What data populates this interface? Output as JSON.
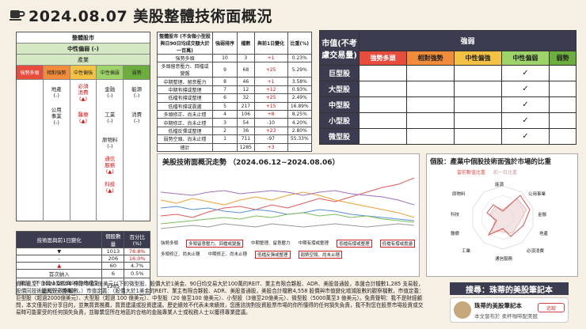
{
  "header": {
    "title": "2024.08.07 美股整體技術面概況"
  },
  "sector_panel": {
    "title": "整體股市",
    "status": "中性偏弱 (-)",
    "industry_label": "產業",
    "categories": [
      "強勢多頭",
      "相對強勢",
      "中性偏強",
      "中性偏弱",
      "弱勢"
    ],
    "col2": [
      "地產",
      "(-)"
    ],
    "col2b": [
      "公用",
      "事業",
      "(-)"
    ],
    "col3": [
      "必須",
      "消費",
      "(▲)"
    ],
    "col3b": [
      "醫療",
      "(▲)"
    ],
    "col4a": [
      "金融",
      "(-)"
    ],
    "col4b": [
      "工業",
      "(-)"
    ],
    "col4c": [
      "原物料",
      "(-)"
    ],
    "col4d": [
      "通信",
      "服務",
      "(▲)"
    ],
    "col4e": [
      "科技",
      "(▲)"
    ],
    "col5a": [
      "能源",
      "(-)"
    ],
    "col5b": [
      "消費",
      "(-)"
    ]
  },
  "change_table": {
    "headers": [
      "技術面與前1日變化",
      "個股數量",
      "百分比(%)"
    ],
    "rows": [
      [
        "▼",
        "1013",
        "78.8%"
      ],
      [
        "-",
        "206",
        "16.0%"
      ],
      [
        "▲",
        "60",
        "4.7%"
      ],
      [
        "首次納入",
        "6",
        "0.5%"
      ],
      [
        "統計（不含微小型股與90日均成交量大於一百萬）",
        "1285",
        ""
      ]
    ]
  },
  "state_table": {
    "headers": [
      "整體股市 (不含微小型股與日90日均成交額大於一百萬)",
      "強弱排序",
      "檔數",
      "與前1日變化",
      "比重(%)"
    ],
    "rows": [
      [
        "強勢多頭",
        "10",
        "3",
        "+1",
        "0.23%"
      ],
      [
        "多頭留意壓力、回檔或變盤",
        "9",
        "68",
        "+25",
        "5.29%"
      ],
      [
        "中期整理、留意壓力",
        "8",
        "46",
        "+1",
        "3.58%"
      ],
      [
        "中期有撐或整理",
        "7",
        "12",
        "+12",
        "0.93%"
      ],
      [
        "低檔有撐或整理",
        "6",
        "32",
        "+25",
        "2.49%"
      ],
      [
        "低檔有撐或震盪",
        "5",
        "217",
        "+15",
        "16.89%"
      ],
      [
        "多頭修正、尚未止穩",
        "4",
        "106",
        "+8",
        "8.25%"
      ],
      [
        "中期修正、尚未止穩",
        "3",
        "54",
        "-10",
        "4.20%"
      ],
      [
        "低檔反彈或整理",
        "2",
        "36",
        "+23",
        "2.80%"
      ],
      [
        "弱勢空頭、尚未止穩",
        "1",
        "711",
        "-97",
        "55.33%"
      ],
      [
        "總計",
        "",
        "1285",
        "+3",
        ""
      ]
    ]
  },
  "cap_table": {
    "corner": "市值(不考慮交易量)",
    "strength_label": "強弱",
    "columns": [
      "強勢多頭",
      "相對強勢",
      "中性偏強",
      "中性偏弱",
      "弱勢"
    ],
    "rows": [
      {
        "label": "巨型股",
        "mark": "✓"
      },
      {
        "label": "大型股",
        "mark": "✓"
      },
      {
        "label": "中型股",
        "mark": "✓"
      },
      {
        "label": "小型股",
        "mark": "✓"
      },
      {
        "label": "微型股",
        "mark": "✓"
      }
    ]
  },
  "trend_chart": {
    "title": "美股技術面概況走勢 （2024.06.12~2024.08.06）",
    "legend": [
      "強勢多頭",
      "多頭留意壓力、回檔或變盤",
      "中期整理、留意壓力",
      "中期有撐或整理",
      "低檔有撐或整理",
      "低檔有撐或震盪",
      "多頭修正、尚未止穩",
      "中期修正、尚未止穩",
      "低檔反彈或整理",
      "弱勢空頭、尚未止穩"
    ]
  },
  "radar_chart": {
    "title": "個股：產業中個股技術面強於市場的比重",
    "legend": [
      "當前數值比重",
      "前一日比重"
    ],
    "axes": [
      "能源",
      "公用事業",
      "金融",
      "地產",
      "必須消費",
      "通信服務",
      "工業",
      "醫療",
      "科技",
      "原物料"
    ],
    "colors": {
      "current": "#d9534f",
      "previous": "#e8c8c8"
    }
  },
  "footer": {
    "note": "資料截至：2024.08.06 排除市值3億美元以下的微型股、股價大於1美金、90日均交易大於100萬的REIT、業主有限合夥股、ADR、美股普通股，本盤合計檔數1,285 支易股，股價同技術面概況觀察檔數。）市值定義：（股價大於1美金的REIT、業主有限合夥股、ADR、美股普通股，美股合計檔數4,558 股價與市值變化增減股數的觀察檔數，市值定義：巨型股（超過2000億美元）、大型股（超過 100 億美元）、中型股（20 億至100 億美元）、小型股（3億至20億美元）、微型股（5000萬至3 億美元）。免責聲明：我不是財經顧問，本文僅用於分享目的，並無買賣推薦，買賣建議或投資建議。歷史績效不代表未來績效，您應諮詢對投資股票市場的你所懂得的任何損失負責，我不對您在股票市場投資或交易時可能蒙受的任何損失負責，並聯繫您所在地區的合格的金融專業人士或稅務人士以獲得專業建議。",
    "search": "搜尋：珠蒂的美股筆記本",
    "profile_name": "珠蒂的美股筆記本",
    "profile_sub": "本文發布於 柔杯咖啡配美股",
    "follow": "追蹤"
  },
  "colors": {
    "accent": "#3c3c50",
    "red": "#d11",
    "green_bg": "#d5e8c4",
    "yellow": "#f4c242",
    "orange": "#f08c3a",
    "light_green": "#9ed36a"
  }
}
